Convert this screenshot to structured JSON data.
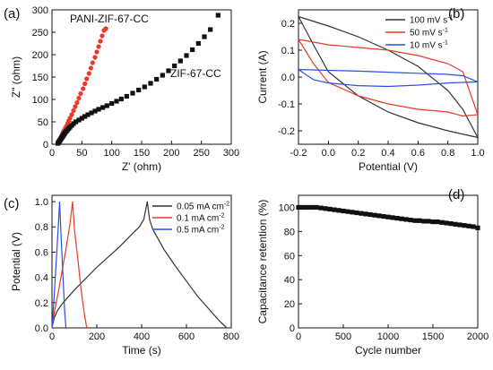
{
  "chart_data": [
    {
      "panel": "(a)",
      "type": "scatter",
      "xlabel": "Z' (ohm)",
      "ylabel": "Z\" (ohm)",
      "xlim": [
        0,
        300
      ],
      "ylim": [
        0,
        300
      ],
      "xticks": [
        "0",
        "50",
        "100",
        "150",
        "200",
        "250",
        "300"
      ],
      "yticks": [
        "0",
        "50",
        "100",
        "150",
        "200",
        "250",
        "300"
      ],
      "annotations": [
        "PANI-ZIF-67-CC",
        "ZIF-67-CC"
      ],
      "series": [
        {
          "name": "PANI-ZIF-67-CC",
          "color": "#e8392a",
          "marker": "circle",
          "points": [
            [
              10,
              2
            ],
            [
              11,
              4
            ],
            [
              12,
              6
            ],
            [
              13,
              9
            ],
            [
              14,
              12
            ],
            [
              15,
              15
            ],
            [
              16,
              18
            ],
            [
              17,
              21
            ],
            [
              18,
              24
            ],
            [
              19,
              27
            ],
            [
              20,
              30
            ],
            [
              22,
              35
            ],
            [
              24,
              40
            ],
            [
              26,
              46
            ],
            [
              28,
              52
            ],
            [
              30,
              58
            ],
            [
              33,
              66
            ],
            [
              36,
              75
            ],
            [
              39,
              84
            ],
            [
              42,
              93
            ],
            [
              45,
              103
            ],
            [
              48,
              113
            ],
            [
              52,
              124
            ],
            [
              55,
              135
            ],
            [
              58,
              146
            ],
            [
              62,
              158
            ],
            [
              65,
              170
            ],
            [
              68,
              182
            ],
            [
              72,
              194
            ],
            [
              75,
              206
            ],
            [
              78,
              218
            ],
            [
              81,
              230
            ],
            [
              84,
              242
            ],
            [
              87,
              254
            ],
            [
              90,
              258
            ]
          ]
        },
        {
          "name": "ZIF-67-CC",
          "color": "#111111",
          "marker": "square",
          "points": [
            [
              10,
              2
            ],
            [
              11,
              4
            ],
            [
              12,
              6
            ],
            [
              13,
              8
            ],
            [
              14,
              10
            ],
            [
              15,
              12
            ],
            [
              16,
              14
            ],
            [
              17,
              16
            ],
            [
              18,
              18
            ],
            [
              19,
              20
            ],
            [
              20,
              22
            ],
            [
              21,
              24
            ],
            [
              22,
              26
            ],
            [
              24,
              29
            ],
            [
              26,
              32
            ],
            [
              28,
              35
            ],
            [
              30,
              38
            ],
            [
              33,
              42
            ],
            [
              36,
              46
            ],
            [
              40,
              50
            ],
            [
              45,
              54
            ],
            [
              50,
              58
            ],
            [
              55,
              62
            ],
            [
              60,
              66
            ],
            [
              66,
              70
            ],
            [
              72,
              74
            ],
            [
              78,
              78
            ],
            [
              85,
              82
            ],
            [
              92,
              86
            ],
            [
              100,
              91
            ],
            [
              108,
              96
            ],
            [
              116,
              101
            ],
            [
              125,
              107
            ],
            [
              135,
              114
            ],
            [
              145,
              121
            ],
            [
              155,
              128
            ],
            [
              165,
              136
            ],
            [
              175,
              145
            ],
            [
              185,
              154
            ],
            [
              195,
              164
            ],
            [
              205,
              175
            ],
            [
              215,
              186
            ],
            [
              225,
              198
            ],
            [
              235,
              211
            ],
            [
              245,
              225
            ],
            [
              255,
              240
            ],
            [
              265,
              256
            ],
            [
              278,
              288
            ]
          ]
        }
      ]
    },
    {
      "panel": "(b)",
      "type": "line",
      "xlabel": "Potential (V)",
      "ylabel": "Current (A)",
      "xlim": [
        -0.2,
        1.0
      ],
      "ylim": [
        -0.25,
        0.25
      ],
      "xticks": [
        "-0.2",
        "0.0",
        "0.2",
        "0.4",
        "0.6",
        "0.8",
        "1.0"
      ],
      "yticks": [
        "-0.2",
        "-0.1",
        "0.0",
        "0.1",
        "0.2"
      ],
      "legend": [
        "100 mV s-1",
        "50 mV s-1",
        "10 mV s-1"
      ],
      "legend_position": "top-right",
      "series": [
        {
          "name": "100 mV s-1",
          "color": "#333333",
          "points": [
            [
              -0.2,
              0.225
            ],
            [
              0.0,
              0.19
            ],
            [
              0.2,
              0.15
            ],
            [
              0.4,
              0.1
            ],
            [
              0.6,
              0.04
            ],
            [
              0.8,
              -0.05
            ],
            [
              0.9,
              -0.12
            ],
            [
              1.0,
              -0.225
            ],
            [
              0.8,
              -0.2
            ],
            [
              0.6,
              -0.17
            ],
            [
              0.4,
              -0.13
            ],
            [
              0.2,
              -0.07
            ],
            [
              0.0,
              0.02
            ],
            [
              -0.1,
              0.12
            ],
            [
              -0.2,
              0.225
            ]
          ]
        },
        {
          "name": "50 mV s-1",
          "color": "#e8392a",
          "points": [
            [
              -0.2,
              0.14
            ],
            [
              -0.1,
              0.13
            ],
            [
              0.0,
              0.12
            ],
            [
              0.2,
              0.11
            ],
            [
              0.4,
              0.1
            ],
            [
              0.6,
              0.08
            ],
            [
              0.8,
              0.05
            ],
            [
              0.9,
              0.02
            ],
            [
              1.0,
              -0.14
            ],
            [
              0.9,
              -0.145
            ],
            [
              0.8,
              -0.13
            ],
            [
              0.6,
              -0.12
            ],
            [
              0.4,
              -0.1
            ],
            [
              0.2,
              -0.07
            ],
            [
              0.0,
              -0.02
            ],
            [
              -0.1,
              0.05
            ],
            [
              -0.2,
              0.14
            ]
          ]
        },
        {
          "name": "10 mV s-1",
          "color": "#2b4fe0",
          "points": [
            [
              -0.2,
              0.028
            ],
            [
              0.0,
              0.025
            ],
            [
              0.2,
              0.022
            ],
            [
              0.4,
              0.018
            ],
            [
              0.6,
              0.014
            ],
            [
              0.8,
              0.01
            ],
            [
              0.9,
              0.005
            ],
            [
              1.0,
              -0.018
            ],
            [
              0.9,
              -0.02
            ],
            [
              0.8,
              -0.022
            ],
            [
              0.6,
              -0.03
            ],
            [
              0.4,
              -0.035
            ],
            [
              0.2,
              -0.032
            ],
            [
              0.0,
              -0.022
            ],
            [
              -0.1,
              -0.01
            ],
            [
              -0.2,
              0.028
            ]
          ]
        }
      ]
    },
    {
      "panel": "(c)",
      "type": "line",
      "xlabel": "Time (s)",
      "ylabel": "Potential (V)",
      "xlim": [
        0,
        800
      ],
      "ylim": [
        0,
        1.05
      ],
      "xticks": [
        "0",
        "200",
        "400",
        "600",
        "800"
      ],
      "yticks": [
        "0.0",
        "0.2",
        "0.4",
        "0.6",
        "0.8",
        "1.0"
      ],
      "legend": [
        "0.05 mA cm-2",
        "0.1 mA cm-2",
        "0.5 mA cm-2"
      ],
      "legend_position": "top-right",
      "series": [
        {
          "name": "0.05 mA cm-2",
          "color": "#333333",
          "points": [
            [
              0,
              0.0
            ],
            [
              10,
              0.08
            ],
            [
              25,
              0.14
            ],
            [
              50,
              0.2
            ],
            [
              100,
              0.3
            ],
            [
              150,
              0.39
            ],
            [
              200,
              0.48
            ],
            [
              250,
              0.56
            ],
            [
              300,
              0.64
            ],
            [
              350,
              0.73
            ],
            [
              390,
              0.8
            ],
            [
              410,
              0.86
            ],
            [
              425,
              1.0
            ],
            [
              435,
              0.86
            ],
            [
              450,
              0.78
            ],
            [
              500,
              0.62
            ],
            [
              550,
              0.49
            ],
            [
              600,
              0.37
            ],
            [
              650,
              0.25
            ],
            [
              700,
              0.15
            ],
            [
              750,
              0.05
            ],
            [
              780,
              0.0
            ]
          ]
        },
        {
          "name": "0.1 mA cm-2",
          "color": "#e8392a",
          "points": [
            [
              0,
              0.0
            ],
            [
              10,
              0.12
            ],
            [
              30,
              0.3
            ],
            [
              60,
              0.6
            ],
            [
              80,
              0.82
            ],
            [
              92,
              1.0
            ],
            [
              100,
              0.78
            ],
            [
              115,
              0.55
            ],
            [
              130,
              0.3
            ],
            [
              145,
              0.1
            ],
            [
              155,
              0.0
            ]
          ]
        },
        {
          "name": "0.5 mA cm-2",
          "color": "#2b4fe0",
          "points": [
            [
              0,
              0.0
            ],
            [
              8,
              0.2
            ],
            [
              18,
              0.5
            ],
            [
              28,
              0.8
            ],
            [
              34,
              1.0
            ],
            [
              40,
              0.75
            ],
            [
              48,
              0.45
            ],
            [
              56,
              0.15
            ],
            [
              62,
              0.0
            ]
          ]
        }
      ]
    },
    {
      "panel": "(d)",
      "type": "scatter",
      "xlabel": "Cycle number",
      "ylabel": "Capacitance retention (%)",
      "xlim": [
        0,
        2000
      ],
      "ylim": [
        0,
        110
      ],
      "xticks": [
        "0",
        "500",
        "1000",
        "1500",
        "2000"
      ],
      "yticks": [
        "0",
        "20",
        "40",
        "60",
        "80",
        "100"
      ],
      "series": [
        {
          "color": "#111111",
          "marker": "square",
          "points": [
            [
              0,
              100
            ],
            [
              50,
              100
            ],
            [
              100,
              100
            ],
            [
              150,
              100
            ],
            [
              200,
              100
            ],
            [
              250,
              99.5
            ],
            [
              300,
              99
            ],
            [
              350,
              98.5
            ],
            [
              400,
              98
            ],
            [
              450,
              97.5
            ],
            [
              500,
              97
            ],
            [
              550,
              96.5
            ],
            [
              600,
              96
            ],
            [
              650,
              95.5
            ],
            [
              700,
              95
            ],
            [
              750,
              94.5
            ],
            [
              800,
              94
            ],
            [
              850,
              93.5
            ],
            [
              900,
              93
            ],
            [
              950,
              92.5
            ],
            [
              1000,
              92
            ],
            [
              1050,
              91.5
            ],
            [
              1100,
              91
            ],
            [
              1150,
              90.5
            ],
            [
              1200,
              90
            ],
            [
              1250,
              89.5
            ],
            [
              1300,
              89
            ],
            [
              1350,
              89
            ],
            [
              1400,
              88.5
            ],
            [
              1450,
              88.5
            ],
            [
              1500,
              88
            ],
            [
              1550,
              88
            ],
            [
              1600,
              87.5
            ],
            [
              1650,
              87
            ],
            [
              1700,
              86.5
            ],
            [
              1750,
              86
            ],
            [
              1800,
              85.5
            ],
            [
              1850,
              85
            ],
            [
              1900,
              84.5
            ],
            [
              1950,
              84
            ],
            [
              2000,
              83
            ]
          ]
        }
      ]
    }
  ]
}
